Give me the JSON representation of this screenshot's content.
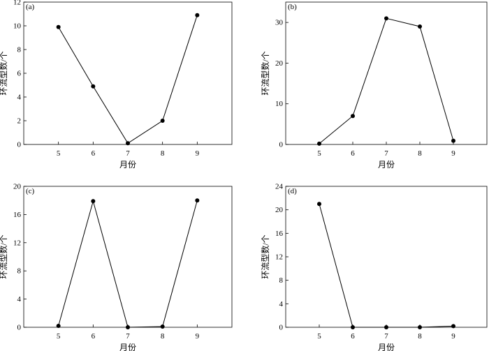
{
  "chart_data": [
    {
      "type": "line",
      "panel_label": "(a)",
      "xlabel": "月份",
      "ylabel": "环流型数/个",
      "x": [
        5,
        6,
        7,
        8,
        9
      ],
      "values": [
        9.9,
        4.9,
        0.1,
        2.0,
        10.9
      ],
      "xlim": [
        4,
        10
      ],
      "ylim": [
        0,
        12
      ],
      "yticks": [
        0,
        2,
        4,
        6,
        8,
        10,
        12
      ],
      "xticks": [
        5,
        6,
        7,
        8,
        9
      ]
    },
    {
      "type": "line",
      "panel_label": "(b)",
      "xlabel": "月份",
      "ylabel": "环流型数/个",
      "x": [
        5,
        6,
        7,
        8,
        9
      ],
      "values": [
        0.2,
        7.0,
        31.0,
        29.0,
        0.9
      ],
      "xlim": [
        4,
        10
      ],
      "ylim": [
        0,
        35
      ],
      "yticks": [
        0,
        10,
        20,
        30
      ],
      "xticks": [
        5,
        6,
        7,
        8,
        9
      ]
    },
    {
      "type": "line",
      "panel_label": "(c)",
      "xlabel": "月份",
      "ylabel": "环流型数/个",
      "x": [
        5,
        6,
        7,
        8,
        9
      ],
      "values": [
        0.2,
        17.9,
        0.0,
        0.1,
        18.0
      ],
      "xlim": [
        4,
        10
      ],
      "ylim": [
        0,
        20
      ],
      "yticks": [
        0,
        4,
        8,
        12,
        16,
        20
      ],
      "xticks": [
        5,
        6,
        7,
        8,
        9
      ]
    },
    {
      "type": "line",
      "panel_label": "(d)",
      "xlabel": "月份",
      "ylabel": "环流型数/个",
      "x": [
        5,
        6,
        7,
        8,
        9
      ],
      "values": [
        21.0,
        0.0,
        0.0,
        0.0,
        0.2
      ],
      "xlim": [
        4,
        10
      ],
      "ylim": [
        0,
        24
      ],
      "yticks": [
        0,
        4,
        8,
        12,
        16,
        20,
        24
      ],
      "xticks": [
        5,
        6,
        7,
        8,
        9
      ]
    }
  ]
}
